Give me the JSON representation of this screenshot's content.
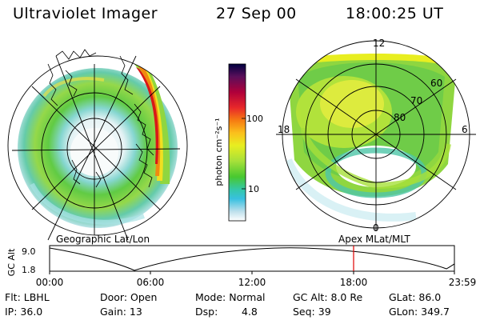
{
  "header": {
    "title": "Ultraviolet Imager",
    "date": "27 Sep 00",
    "time": "18:00:25 UT"
  },
  "colorbar": {
    "unit_label": "photon cm⁻²s⁻¹",
    "tick_100": "100",
    "tick_10": "10",
    "colors": [
      "#000040",
      "#5a0f5a",
      "#b0003a",
      "#e8282a",
      "#f67c12",
      "#fbc01c",
      "#e8ee20",
      "#a6e03a",
      "#48c830",
      "#34c8a8",
      "#38c0e0",
      "#bde0ec",
      "#ffffff"
    ]
  },
  "left_map": {
    "caption": "Geographic Lat/Lon"
  },
  "right_map": {
    "caption": "Apex MLat/MLT",
    "mlt_12": "12",
    "mlt_18": "18",
    "mlt_6": "6",
    "mlt_0": "0",
    "lat_60": "60",
    "lat_70": "70",
    "lat_80": "80"
  },
  "altitude_plot": {
    "ylabel": "GC Alt",
    "y_high": "9.0",
    "y_low": "1.8",
    "x_ticks": [
      "00:00",
      "06:00",
      "12:00",
      "18:00",
      "23:59"
    ],
    "marker_time": "18:00",
    "marker_color": "#e00000"
  },
  "status": {
    "row1": {
      "flt": "Flt: LBHL",
      "door": "Door: Open",
      "mode": "Mode: Normal",
      "gcalt": "GC Alt: 8.0 Re",
      "glat": "GLat: 86.0"
    },
    "row2": {
      "ip": "IP: 36.0",
      "gain": "Gain: 13",
      "dsp_label": "Dsp:",
      "dsp_value": "4.8",
      "seq": "Seq: 39",
      "glon": "GLon: 349.7"
    }
  }
}
